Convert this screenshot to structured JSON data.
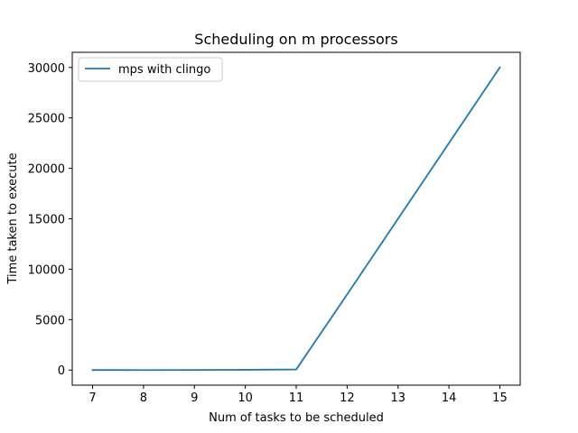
{
  "chart_data": {
    "type": "line",
    "title": "Scheduling on m processors",
    "xlabel": "Num of tasks to be scheduled",
    "ylabel": "Time taken to execute",
    "x": [
      7,
      8,
      9,
      10,
      11,
      12,
      13,
      14,
      15
    ],
    "xticks": [
      "7",
      "8",
      "9",
      "10",
      "11",
      "12",
      "13",
      "14",
      "15"
    ],
    "yticks": [
      0,
      5000,
      10000,
      15000,
      20000,
      25000,
      30000
    ],
    "xlim": [
      6.6,
      15.4
    ],
    "ylim": [
      -1500,
      31500
    ],
    "grid": false,
    "legend_position": "top-left",
    "series": [
      {
        "name": "mps with clingo",
        "color": "#1f77b4",
        "values": [
          5,
          1,
          10,
          25,
          60,
          7500,
          15000,
          22500,
          30000
        ]
      }
    ]
  }
}
